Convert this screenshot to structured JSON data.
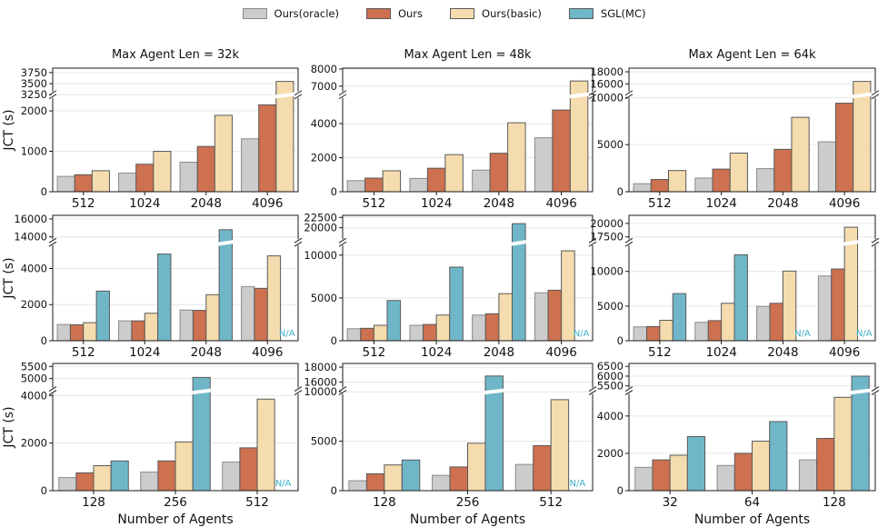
{
  "figure": {
    "ylabel": "JCT (s)",
    "xlabel": "Number of Agents",
    "na_label": "N/A",
    "na_color": "#41b0cb",
    "grid_color": "#e6e6e6",
    "spine_color": "#1a1a1a",
    "colors": {
      "Ours(oracle)": {
        "fill": "#cccccc",
        "edge": "#8a8a8a"
      },
      "Ours": {
        "fill": "#cd7150",
        "edge": "#595959"
      },
      "Ours(basic)": {
        "fill": "#f5dcae",
        "edge": "#595959"
      },
      "SGL(MC)": {
        "fill": "#6fb7c8",
        "edge": "#595959"
      }
    }
  },
  "legend": {
    "items": [
      {
        "label": "Ours(oracle)"
      },
      {
        "label": "Ours"
      },
      {
        "label": "Ours(basic)"
      },
      {
        "label": "SGL(MC)"
      }
    ]
  },
  "chart_data": [
    {
      "type": "bar",
      "title": "Max Agent Len = 32k",
      "ylabel": "JCT (s)",
      "xlabel": "",
      "categories": [
        "512",
        "1024",
        "2048",
        "4096"
      ],
      "series": [
        {
          "name": "Ours(oracle)",
          "values": [
            380,
            460,
            730,
            1310
          ]
        },
        {
          "name": "Ours",
          "values": [
            420,
            680,
            1120,
            2150
          ]
        },
        {
          "name": "Ours(basic)",
          "values": [
            520,
            1000,
            1890,
            3550
          ]
        }
      ],
      "axis": {
        "lower_ticks": [
          0,
          1000,
          2000
        ],
        "lower_max": 2400,
        "upper_ticks": [
          3250,
          3500,
          3750
        ],
        "upper_min": 3250,
        "upper_max": 3850
      }
    },
    {
      "type": "bar",
      "title": "Max Agent Len = 48k",
      "ylabel": "",
      "xlabel": "",
      "categories": [
        "512",
        "1024",
        "2048",
        "4096"
      ],
      "series": [
        {
          "name": "Ours(oracle)",
          "values": [
            650,
            780,
            1270,
            3170
          ]
        },
        {
          "name": "Ours",
          "values": [
            800,
            1380,
            2260,
            4800
          ]
        },
        {
          "name": "Ours(basic)",
          "values": [
            1230,
            2180,
            4050,
            7300
          ]
        }
      ],
      "axis": {
        "lower_ticks": [
          0,
          2000,
          4000
        ],
        "lower_max": 5700,
        "upper_ticks": [
          7000,
          8000
        ],
        "upper_min": 6500,
        "upper_max": 8050
      }
    },
    {
      "type": "bar",
      "title": "Max Agent Len = 64k",
      "ylabel": "",
      "xlabel": "",
      "categories": [
        "512",
        "1024",
        "2048",
        "4096"
      ],
      "series": [
        {
          "name": "Ours(oracle)",
          "values": [
            850,
            1450,
            2450,
            5300
          ]
        },
        {
          "name": "Ours",
          "values": [
            1300,
            2400,
            4500,
            9400
          ]
        },
        {
          "name": "Ours(basic)",
          "values": [
            2250,
            4100,
            7900,
            16400
          ]
        }
      ],
      "axis": {
        "lower_ticks": [
          0,
          5000,
          10000
        ],
        "lower_max": 10300,
        "upper_ticks": [
          16000,
          18000
        ],
        "upper_min": 14200,
        "upper_max": 18600
      }
    },
    {
      "type": "bar",
      "title": "",
      "ylabel": "JCT (s)",
      "xlabel": "",
      "categories": [
        "512",
        "1024",
        "2048",
        "4096"
      ],
      "series": [
        {
          "name": "Ours(oracle)",
          "values": [
            900,
            1100,
            1700,
            3000
          ]
        },
        {
          "name": "Ours",
          "values": [
            880,
            1100,
            1680,
            2900
          ]
        },
        {
          "name": "Ours(basic)",
          "values": [
            1000,
            1520,
            2550,
            4700
          ]
        },
        {
          "name": "SGL(MC)",
          "values": [
            2750,
            4800,
            14800,
            "N/A"
          ]
        }
      ],
      "axis": {
        "lower_ticks": [
          0,
          2000,
          4000
        ],
        "lower_max": 5450,
        "upper_ticks": [
          14000,
          16000
        ],
        "upper_min": 13400,
        "upper_max": 16400
      }
    },
    {
      "type": "bar",
      "title": "",
      "ylabel": "",
      "xlabel": "",
      "categories": [
        "512",
        "1024",
        "2048",
        "4096"
      ],
      "series": [
        {
          "name": "Ours(oracle)",
          "values": [
            1400,
            1800,
            3000,
            5600
          ]
        },
        {
          "name": "Ours",
          "values": [
            1450,
            1900,
            3150,
            5900
          ]
        },
        {
          "name": "Ours(basic)",
          "values": [
            1800,
            3000,
            5500,
            10500
          ]
        },
        {
          "name": "SGL(MC)",
          "values": [
            4700,
            8600,
            21000,
            "N/A"
          ]
        }
      ],
      "axis": {
        "lower_ticks": [
          0,
          5000,
          10000
        ],
        "lower_max": 11500,
        "upper_ticks": [
          20000,
          22500
        ],
        "upper_min": 16500,
        "upper_max": 23000
      }
    },
    {
      "type": "bar",
      "title": "",
      "ylabel": "",
      "xlabel": "",
      "categories": [
        "512",
        "1024",
        "2048",
        "4096"
      ],
      "series": [
        {
          "name": "Ours(oracle)",
          "values": [
            2000,
            2650,
            4950,
            9350
          ]
        },
        {
          "name": "Ours",
          "values": [
            2050,
            2900,
            5400,
            10350
          ]
        },
        {
          "name": "Ours(basic)",
          "values": [
            2950,
            5400,
            10050,
            19300
          ]
        },
        {
          "name": "SGL(MC)",
          "values": [
            6800,
            12400,
            "N/A",
            "N/A"
          ]
        }
      ],
      "axis": {
        "lower_ticks": [
          0,
          5000,
          10000
        ],
        "lower_max": 14200,
        "upper_ticks": [
          17500,
          20000
        ],
        "upper_min": 16500,
        "upper_max": 21500
      }
    },
    {
      "type": "bar",
      "title": "",
      "ylabel": "JCT (s)",
      "xlabel": "Number of Agents",
      "categories": [
        "128",
        "256",
        "512"
      ],
      "series": [
        {
          "name": "Ours(oracle)",
          "values": [
            550,
            780,
            1200
          ]
        },
        {
          "name": "Ours",
          "values": [
            750,
            1250,
            1800
          ]
        },
        {
          "name": "Ours(basic)",
          "values": [
            1050,
            2050,
            3850
          ]
        },
        {
          "name": "SGL(MC)",
          "values": [
            1250,
            5050,
            "N/A"
          ]
        }
      ],
      "axis": {
        "lower_ticks": [
          0,
          2000,
          4000
        ],
        "lower_max": 4200,
        "upper_ticks": [
          5000,
          5500
        ],
        "upper_min": 4500,
        "upper_max": 5625
      }
    },
    {
      "type": "bar",
      "title": "",
      "ylabel": "",
      "xlabel": "Number of Agents",
      "categories": [
        "128",
        "256",
        "512"
      ],
      "series": [
        {
          "name": "Ours(oracle)",
          "values": [
            1000,
            1550,
            2650
          ]
        },
        {
          "name": "Ours",
          "values": [
            1700,
            2400,
            4550
          ]
        },
        {
          "name": "Ours(basic)",
          "values": [
            2600,
            4800,
            9200
          ]
        },
        {
          "name": "SGL(MC)",
          "values": [
            3100,
            16800,
            "N/A"
          ]
        }
      ],
      "axis": {
        "lower_ticks": [
          0,
          5000,
          10000
        ],
        "lower_max": 10100,
        "upper_ticks": [
          16000,
          18000
        ],
        "upper_min": 14800,
        "upper_max": 18500
      }
    },
    {
      "type": "bar",
      "title": "",
      "ylabel": "",
      "xlabel": "Number of Agents",
      "categories": [
        "32",
        "64",
        "128"
      ],
      "series": [
        {
          "name": "Ours(oracle)",
          "values": [
            1250,
            1350,
            1650
          ]
        },
        {
          "name": "Ours",
          "values": [
            1650,
            2000,
            2800
          ]
        },
        {
          "name": "Ours(basic)",
          "values": [
            1900,
            2650,
            5000
          ]
        },
        {
          "name": "SGL(MC)",
          "values": [
            2900,
            3700,
            6000
          ]
        }
      ],
      "axis": {
        "lower_ticks": [
          0,
          2000,
          4000
        ],
        "lower_max": 5350,
        "upper_ticks": [
          5500,
          6000,
          6500
        ],
        "upper_min": 5250,
        "upper_max": 6650
      }
    }
  ]
}
